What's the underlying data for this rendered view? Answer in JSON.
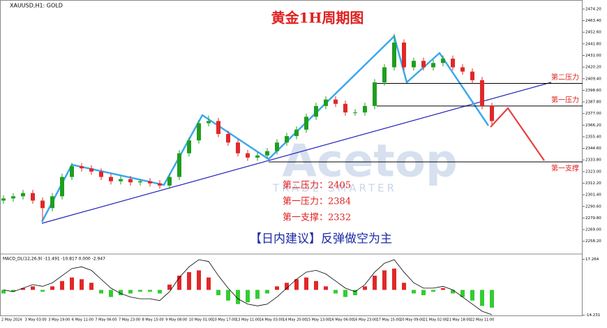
{
  "chart_data": {
    "type": "candlestick",
    "symbol": "XAUUSD,H1: GOLD",
    "title": "黄金1H周期图",
    "watermark": "Acetop",
    "watermark_sub": "TRADE SMARTER",
    "x_labels": [
      "2 May 2024",
      "3 May 03:00",
      "3 May 19:00",
      "6 May 11:00",
      "7 May 06:00",
      "7 May 23:00",
      "8 May 15:00",
      "9 May 08:00",
      "10 May 01:00",
      "10 May 17:00",
      "13 May 11:00",
      "14 May 03:00",
      "14 May 20:00",
      "15 May 13:00",
      "16 May 06:00",
      "16 May 23:00",
      "17 May 15:00",
      "20 May 09:00",
      "21 May 02:00",
      "21 May 18:00",
      "22 May 11:00"
    ],
    "open": [
      2296,
      2298,
      2300,
      2303,
      2296,
      2289,
      2300,
      2318,
      2328,
      2326,
      2323,
      2318,
      2314,
      2316,
      2313,
      2314,
      2312,
      2310,
      2318,
      2340,
      2352,
      2368,
      2370,
      2358,
      2350,
      2340,
      2336,
      2338,
      2342,
      2350,
      2356,
      2362,
      2374,
      2384,
      2390,
      2386,
      2378,
      2378,
      2384,
      2406,
      2420,
      2443,
      2420,
      2426,
      2420,
      2424,
      2428,
      2420,
      2416,
      2408,
      2384
    ],
    "high": [
      2301,
      2303,
      2306,
      2306,
      2299,
      2303,
      2321,
      2331,
      2331,
      2329,
      2326,
      2321,
      2319,
      2319,
      2316,
      2317,
      2315,
      2321,
      2343,
      2355,
      2371,
      2375,
      2373,
      2361,
      2353,
      2343,
      2341,
      2345,
      2353,
      2359,
      2365,
      2377,
      2387,
      2393,
      2393,
      2389,
      2381,
      2387,
      2409,
      2423,
      2451,
      2446,
      2429,
      2429,
      2427,
      2431,
      2431,
      2423,
      2419,
      2411,
      2387
    ],
    "low": [
      2293,
      2295,
      2297,
      2293,
      2278,
      2286,
      2297,
      2315,
      2323,
      2320,
      2315,
      2311,
      2311,
      2310,
      2310,
      2309,
      2307,
      2307,
      2315,
      2337,
      2349,
      2365,
      2355,
      2347,
      2337,
      2333,
      2333,
      2335,
      2339,
      2347,
      2353,
      2359,
      2371,
      2381,
      2383,
      2375,
      2375,
      2375,
      2381,
      2403,
      2417,
      2417,
      2417,
      2417,
      2417,
      2421,
      2417,
      2413,
      2405,
      2381,
      2367
    ],
    "close": [
      2298,
      2300,
      2303,
      2296,
      2289,
      2300,
      2318,
      2328,
      2326,
      2323,
      2318,
      2314,
      2316,
      2313,
      2314,
      2312,
      2310,
      2318,
      2340,
      2352,
      2368,
      2370,
      2358,
      2350,
      2340,
      2336,
      2338,
      2342,
      2350,
      2356,
      2362,
      2374,
      2384,
      2390,
      2386,
      2378,
      2378,
      2384,
      2406,
      2420,
      2443,
      2420,
      2426,
      2420,
      2424,
      2428,
      2420,
      2416,
      2408,
      2384,
      2370
    ],
    "up_color": "#1f9e1f",
    "down_color": "#e02828",
    "ylim": [
      2247.6,
      2482.6
    ],
    "yticks": [
      {
        "value": 2474.2,
        "label": "2474.20"
      },
      {
        "value": 2463.4,
        "label": "2463.40"
      },
      {
        "value": 2452.6,
        "label": "2452.60"
      },
      {
        "value": 2441.8,
        "label": "2441.80"
      },
      {
        "value": 2431,
        "label": "2431.00"
      },
      {
        "value": 2420.2,
        "label": "2420.20"
      },
      {
        "value": 2409.4,
        "label": "2409.40"
      },
      {
        "value": 2398.6,
        "label": "2398.60"
      },
      {
        "value": 2387.8,
        "label": "2387.80"
      },
      {
        "value": 2377,
        "label": "2377.00"
      },
      {
        "value": 2366.2,
        "label": "2366.20"
      },
      {
        "value": 2355.4,
        "label": "2355.40"
      },
      {
        "value": 2344.6,
        "label": "2344.60"
      },
      {
        "value": 2333.8,
        "label": "2333.80"
      },
      {
        "value": 2323,
        "label": "2323.00"
      },
      {
        "value": 2312.2,
        "label": "2312.20"
      },
      {
        "value": 2301.4,
        "label": "2301.40"
      },
      {
        "value": 2290.6,
        "label": "2290.60"
      },
      {
        "value": 2279.8,
        "label": "2279.80"
      },
      {
        "value": 2269,
        "label": "2269.00"
      },
      {
        "value": 2258.2,
        "label": "2258.20"
      }
    ],
    "levels": [
      {
        "name": "第二压力",
        "value": 2405
      },
      {
        "name": "第一压力",
        "value": 2384
      },
      {
        "name": "第一支撑",
        "value": 2332
      }
    ],
    "summary": [
      "第二压力：2405",
      "第一压力：2384",
      "第一支撑：2332"
    ],
    "advice": "【日内建议】反弹做空为主",
    "macd_label": "MACD_DL(12,26,9) -11.491 -10.817 0.000 -2.947",
    "macd_hist": [
      -2,
      -1,
      1,
      2,
      -1,
      2,
      5,
      7,
      6,
      4,
      -2,
      -4,
      -3,
      -2,
      -1,
      -1,
      -2,
      3,
      8,
      10,
      11,
      7,
      -3,
      -6,
      -8,
      -7,
      -5,
      -2,
      2,
      4,
      6,
      7,
      5,
      2,
      -2,
      -4,
      -3,
      2,
      8,
      11,
      12,
      4,
      -2,
      -3,
      -1,
      1,
      -2,
      -4,
      -6,
      -9,
      -10
    ],
    "macd_line": [
      0,
      -1,
      1,
      3,
      2,
      4,
      8,
      12,
      13,
      11,
      6,
      1,
      -2,
      -4,
      -5,
      -5,
      -6,
      -1,
      7,
      13,
      17,
      16,
      8,
      1,
      -5,
      -8,
      -9,
      -8,
      -4,
      1,
      6,
      10,
      11,
      9,
      5,
      1,
      -1,
      3,
      10,
      15,
      17,
      10,
      4,
      1,
      1,
      2,
      0,
      -4,
      -8,
      -12,
      -14
    ],
    "macd_ylim": [
      -18.3,
      19.8
    ],
    "macd_yticks": [
      {
        "value": 17.264,
        "label": "17.264"
      },
      {
        "value": -14.231,
        "label": "-14.231"
      }
    ]
  }
}
